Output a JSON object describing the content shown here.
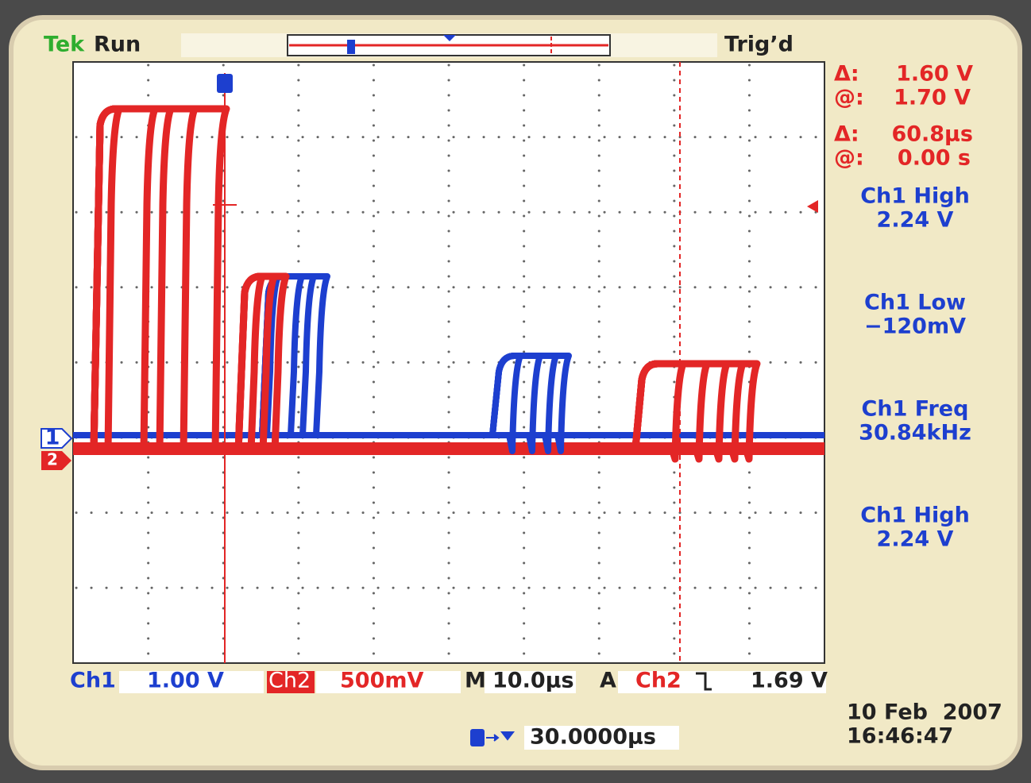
{
  "header": {
    "brand": "Tek",
    "state": "Run",
    "trigger_status": "Trig’d"
  },
  "cursors": [
    {
      "delta_label": "Δ:",
      "delta": "1.60 V",
      "at_label": "@:",
      "at": "1.70 V"
    },
    {
      "delta_label": "Δ:",
      "delta": "60.8µs",
      "at_label": "@:",
      "at": "0.00 s"
    }
  ],
  "measurements": [
    {
      "name": "Ch1 High",
      "value": "2.24 V"
    },
    {
      "name": "Ch1 Low",
      "value": "−120mV"
    },
    {
      "name": "Ch1 Freq",
      "value": "30.84kHz"
    },
    {
      "name": "Ch1 High",
      "value": "2.24 V"
    }
  ],
  "channel_markers": [
    "1",
    "2"
  ],
  "footer": {
    "ch1_label": "Ch1",
    "ch1_scale": "1.00 V",
    "ch2_label": "Ch2",
    "ch2_scale": "500mV",
    "time_label": "M",
    "time_scale": "10.0µs",
    "trigger_label": "A",
    "trigger_source": "Ch2",
    "trigger_level": "1.69 V",
    "position": "30.0000µs",
    "date": "10 Feb  2007",
    "time": "16:46:47"
  }
}
